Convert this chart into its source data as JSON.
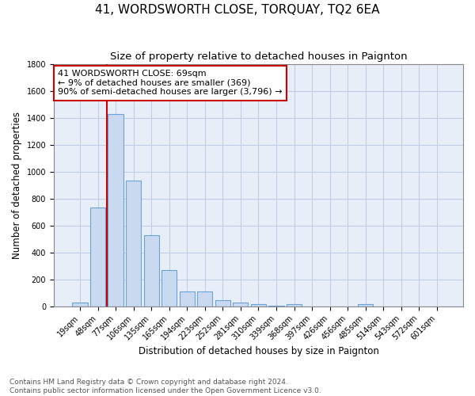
{
  "title": "41, WORDSWORTH CLOSE, TORQUAY, TQ2 6EA",
  "subtitle": "Size of property relative to detached houses in Paignton",
  "xlabel": "Distribution of detached houses by size in Paignton",
  "ylabel": "Number of detached properties",
  "categories": [
    "19sqm",
    "48sqm",
    "77sqm",
    "106sqm",
    "135sqm",
    "165sqm",
    "194sqm",
    "223sqm",
    "252sqm",
    "281sqm",
    "310sqm",
    "339sqm",
    "368sqm",
    "397sqm",
    "426sqm",
    "456sqm",
    "485sqm",
    "514sqm",
    "543sqm",
    "572sqm",
    "601sqm"
  ],
  "values": [
    25,
    735,
    1425,
    935,
    530,
    270,
    110,
    110,
    45,
    25,
    15,
    5,
    15,
    0,
    0,
    0,
    15,
    0,
    0,
    0,
    0
  ],
  "bar_color": "#c9d9f0",
  "bar_edge_color": "#6ba3d6",
  "grid_color": "#c0cfe8",
  "background_color": "#e8eef8",
  "red_line_x": 1.5,
  "annotation_text": "41 WORDSWORTH CLOSE: 69sqm\n← 9% of detached houses are smaller (369)\n90% of semi-detached houses are larger (3,796) →",
  "annotation_box_color": "#ffffff",
  "annotation_border_color": "#cc0000",
  "ylim": [
    0,
    1800
  ],
  "yticks": [
    0,
    200,
    400,
    600,
    800,
    1000,
    1200,
    1400,
    1600,
    1800
  ],
  "footnote": "Contains HM Land Registry data © Crown copyright and database right 2024.\nContains public sector information licensed under the Open Government Licence v3.0.",
  "title_fontsize": 11,
  "subtitle_fontsize": 9.5,
  "label_fontsize": 8.5,
  "tick_fontsize": 7,
  "annotation_fontsize": 8,
  "footnote_fontsize": 6.5
}
